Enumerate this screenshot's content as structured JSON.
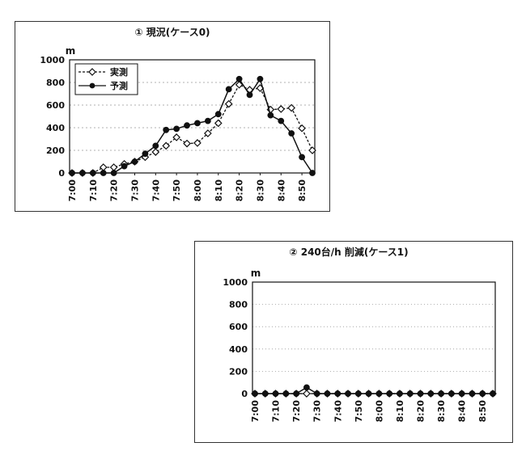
{
  "chart_data": [
    {
      "type": "line",
      "title": "① 現況(ケース0)",
      "ylabel": "m",
      "ylim": [
        0,
        1000
      ],
      "yticks": [
        0,
        200,
        400,
        600,
        800,
        1000
      ],
      "categories": [
        "7:00",
        "7:05",
        "7:10",
        "7:15",
        "7:20",
        "7:25",
        "7:30",
        "7:35",
        "7:40",
        "7:45",
        "7:50",
        "7:55",
        "8:00",
        "8:05",
        "8:10",
        "8:15",
        "8:20",
        "8:25",
        "8:30",
        "8:35",
        "8:40",
        "8:45",
        "8:50",
        "8:55"
      ],
      "xtick_labels": [
        "7:00",
        "7:10",
        "7:20",
        "7:30",
        "7:40",
        "7:50",
        "8:00",
        "8:10",
        "8:20",
        "8:30",
        "8:40",
        "8:50"
      ],
      "grid": "horizontal dashed",
      "legend_position": "top-left",
      "series": [
        {
          "name": "実測",
          "style": "dashed",
          "marker": "open-diamond",
          "values": [
            0,
            0,
            0,
            50,
            50,
            80,
            100,
            140,
            185,
            240,
            315,
            260,
            265,
            350,
            440,
            610,
            780,
            735,
            750,
            560,
            565,
            575,
            395,
            200
          ]
        },
        {
          "name": "予測",
          "style": "solid",
          "marker": "filled-circle",
          "values": [
            0,
            0,
            0,
            0,
            0,
            60,
            100,
            170,
            240,
            380,
            390,
            420,
            440,
            460,
            520,
            740,
            830,
            690,
            830,
            510,
            460,
            350,
            140,
            0
          ]
        }
      ]
    },
    {
      "type": "line",
      "title": "② 240台/h 削減(ケース1)",
      "ylabel": "m",
      "ylim": [
        0,
        1000
      ],
      "yticks": [
        0,
        200,
        400,
        600,
        800,
        1000
      ],
      "categories": [
        "7:00",
        "7:05",
        "7:10",
        "7:15",
        "7:20",
        "7:25",
        "7:30",
        "7:35",
        "7:40",
        "7:45",
        "7:50",
        "7:55",
        "8:00",
        "8:05",
        "8:10",
        "8:15",
        "8:20",
        "8:25",
        "8:30",
        "8:35",
        "8:40",
        "8:45",
        "8:50",
        "8:55"
      ],
      "xtick_labels": [
        "7:00",
        "7:10",
        "7:20",
        "7:30",
        "7:40",
        "7:50",
        "8:00",
        "8:10",
        "8:20",
        "8:30",
        "8:40",
        "8:50"
      ],
      "grid": "horizontal dotted",
      "series": [
        {
          "style": "dashed",
          "marker": "open-diamond",
          "values": [
            0,
            0,
            0,
            0,
            0,
            0,
            0,
            0,
            0,
            0,
            0,
            0,
            0,
            0,
            0,
            0,
            0,
            0,
            0,
            0,
            0,
            0,
            0,
            0
          ]
        },
        {
          "style": "solid",
          "marker": "filled-circle",
          "values": [
            0,
            0,
            0,
            0,
            0,
            55,
            0,
            0,
            0,
            0,
            0,
            0,
            0,
            0,
            0,
            0,
            0,
            0,
            0,
            0,
            0,
            0,
            0,
            0
          ]
        }
      ]
    }
  ]
}
